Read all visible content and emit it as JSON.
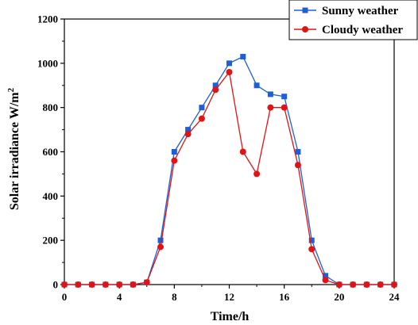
{
  "chart_data": {
    "type": "line",
    "xlabel": "Time/h",
    "ylabel_main": "Solar irradiance W/m",
    "ylabel_sup": "2",
    "xlim": [
      0,
      24
    ],
    "ylim": [
      0,
      1200
    ],
    "xticks": [
      0,
      4,
      8,
      12,
      16,
      20,
      24
    ],
    "yticks": [
      0,
      200,
      400,
      600,
      800,
      1000,
      1200
    ],
    "grid": false,
    "legend_position": "top-right",
    "x": [
      0,
      1,
      2,
      3,
      4,
      5,
      6,
      7,
      8,
      9,
      10,
      11,
      12,
      13,
      14,
      15,
      16,
      17,
      18,
      19,
      20,
      21,
      22,
      23,
      24
    ],
    "series": [
      {
        "name": "Sunny weather",
        "color": "#1f5fd6",
        "marker": "square",
        "values": [
          0,
          0,
          0,
          0,
          0,
          0,
          10,
          200,
          600,
          700,
          800,
          900,
          1000,
          1030,
          900,
          860,
          850,
          600,
          200,
          40,
          0,
          0,
          0,
          0,
          0
        ]
      },
      {
        "name": "Cloudy weather",
        "color": "#e01414",
        "marker": "circle",
        "values": [
          0,
          0,
          0,
          0,
          0,
          0,
          10,
          170,
          560,
          680,
          750,
          880,
          960,
          600,
          500,
          800,
          800,
          540,
          160,
          20,
          0,
          0,
          0,
          0,
          0
        ]
      }
    ]
  }
}
